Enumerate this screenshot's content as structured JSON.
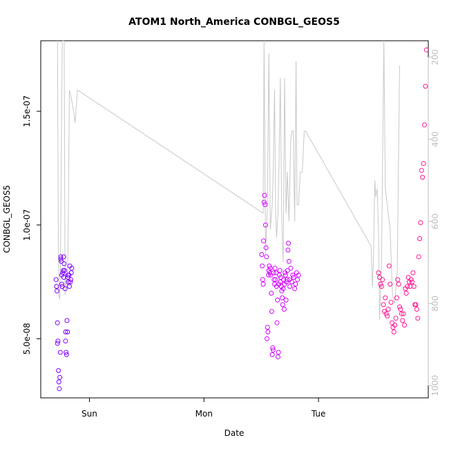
{
  "chart_data": {
    "type": "scatter",
    "title": "ATOM1 North_America CONBGL_GEOS5",
    "xlabel": "Date",
    "ylabel": "CONBGL_GEOS5",
    "x_ticks": [
      "Sun",
      "Mon",
      "Tue"
    ],
    "y_ticks": [
      "5.0e-08",
      "1.0e-07",
      "1.5e-07"
    ],
    "y_tick_values": [
      5e-08,
      1e-07,
      1.5e-07
    ],
    "ylim": [
      2.4e-08,
      1.81e-07
    ],
    "right_axis_ticks": [
      "200",
      "400",
      "600",
      "800",
      "1000"
    ],
    "right_axis_values": [
      200,
      400,
      600,
      800,
      1000
    ],
    "right_axis_reversed": true,
    "right_axis_lim": [
      1030,
      160
    ],
    "x_unit": "hours since Saturday 00:00 (Sun=24, Mon=48, Tue=72)",
    "xlim": [
      13.8,
      95.0
    ],
    "colors": {
      "altitude_line": "#c8c8c8",
      "series_day1": "#7f00ff",
      "series_day2": "#d400ff",
      "series_day3": "#ff1493"
    },
    "series": [
      {
        "type": "line",
        "axis": "right",
        "x": [
          17.2,
          17.3,
          17.5,
          17.6,
          17.8,
          18.0,
          18.3,
          18.7,
          18.9,
          19.0,
          19.3,
          19.5,
          19.8,
          20.2,
          20.5,
          20.8,
          21.0,
          21.5,
          60.4,
          60.6,
          60.9,
          61.3,
          61.6,
          61.9,
          62.3,
          62.5,
          62.8,
          63.0,
          63.2,
          63.5,
          63.7,
          64.0,
          64.3,
          64.6,
          64.9,
          65.2,
          65.5,
          65.8,
          66.2,
          66.4,
          66.7,
          67.0,
          67.3,
          67.5,
          67.8,
          68.2,
          68.6,
          69.0,
          69.3,
          83.0,
          83.3,
          83.5,
          83.8,
          84.0,
          84.3,
          84.6,
          84.8,
          85.2,
          85.7,
          86.0,
          86.4,
          87.0,
          87.5,
          88.0,
          88.5,
          89.0
        ],
        "y": [
          160,
          160,
          680,
          780,
          790,
          620,
          160,
          160,
          780,
          740,
          760,
          680,
          280,
          300,
          320,
          340,
          360,
          280,
          580,
          160,
          680,
          560,
          190,
          620,
          560,
          480,
          280,
          560,
          640,
          580,
          470,
          250,
          600,
          700,
          250,
          580,
          480,
          600,
          400,
          380,
          380,
          600,
          210,
          560,
          560,
          480,
          480,
          380,
          380,
          660,
          760,
          700,
          500,
          540,
          520,
          640,
          840,
          700,
          160,
          520,
          560,
          620,
          780,
          800,
          720,
          220
        ],
        "note": ""
      },
      {
        "type": "scatter",
        "name": "",
        "x": [
          17.0,
          17.1,
          17.2,
          17.3,
          17.3,
          17.4,
          17.5,
          17.6,
          17.7,
          17.8,
          17.9,
          18.0,
          18.0,
          18.1,
          18.2,
          18.2,
          18.3,
          18.4,
          18.5,
          18.6,
          18.6,
          18.7,
          18.8,
          18.9,
          19.0,
          19.0,
          19.1,
          19.2,
          19.3,
          19.4,
          19.5,
          19.5,
          19.6,
          19.7,
          19.8,
          19.9,
          20.0,
          20.1,
          20.2,
          20.3
        ],
        "y": [
          7.6e-08,
          7.3e-08,
          7.1e-08,
          4.8e-08,
          5.7e-08,
          4.9e-08,
          3.6e-08,
          3.1e-08,
          2.8e-08,
          3.3e-08,
          4.4e-08,
          8.5e-08,
          8.6e-08,
          8.4e-08,
          7.8e-08,
          7.4e-08,
          7.3e-08,
          7.9e-08,
          8e-08,
          8.6e-08,
          7.7e-08,
          8.3e-08,
          8e-08,
          7.2e-08,
          4.9e-08,
          5.3e-08,
          4.4e-08,
          4.3e-08,
          5.8e-08,
          5.3e-08,
          7.8e-08,
          7.7e-08,
          7.5e-08,
          7.8e-08,
          7.3e-08,
          8.2e-08,
          7.5e-08,
          7.6e-08,
          7.9e-08,
          8.1e-08
        ],
        "color": "series_day1"
      },
      {
        "type": "scatter",
        "name": "",
        "x": [
          60.1,
          60.2,
          60.3,
          60.4,
          60.5,
          60.6,
          60.7,
          60.8,
          60.9,
          61.0,
          61.1,
          61.2,
          61.3,
          61.4,
          61.5,
          61.6,
          61.7,
          61.8,
          61.9,
          62.0,
          62.1,
          62.2,
          62.3,
          62.4,
          62.5,
          62.6,
          62.7,
          62.8,
          62.9,
          63.0,
          63.1,
          63.2,
          63.3,
          63.4,
          63.5,
          63.6,
          63.7,
          63.8,
          63.9,
          64.0,
          64.1,
          64.2,
          64.3,
          64.4,
          64.5,
          64.6,
          64.7,
          64.8,
          64.9,
          65.0,
          65.1,
          65.2,
          65.3,
          65.4,
          65.5,
          65.6,
          65.7,
          65.8,
          65.9,
          66.0,
          66.2,
          66.4,
          66.6,
          66.8,
          67.0,
          67.2,
          67.4,
          67.6,
          67.8
        ],
        "y": [
          8.7e-08,
          8.2e-08,
          7.6e-08,
          7.4e-08,
          9.3e-08,
          1.1e-07,
          1.13e-07,
          1.09e-07,
          1e-07,
          9e-08,
          8.6e-08,
          5e-08,
          5.5e-08,
          5.3e-08,
          7.8e-08,
          8e-08,
          8.2e-08,
          7.9e-08,
          8.1e-08,
          7.8e-08,
          7e-08,
          6.2e-08,
          4.3e-08,
          4.6e-08,
          4.5e-08,
          7.9e-08,
          7.6e-08,
          7.4e-08,
          8.1e-08,
          7.6e-08,
          7.9e-08,
          7.3e-08,
          5.7e-08,
          6.7e-08,
          4.2e-08,
          4.4e-08,
          7.4e-08,
          7.8e-08,
          8e-08,
          7.5e-08,
          7.7e-08,
          7.3e-08,
          7.1e-08,
          6.8e-08,
          6.5e-08,
          7.2e-08,
          7.6e-08,
          6.3e-08,
          7.4e-08,
          7.9e-08,
          7.8e-08,
          6.7e-08,
          7.5e-08,
          7.6e-08,
          8e-08,
          8.9e-08,
          9.2e-08,
          8.4e-08,
          7.6e-08,
          7.3e-08,
          8.1e-08,
          7.5e-08,
          7.8e-08,
          7.7e-08,
          7.2e-08,
          7.4e-08,
          7.9e-08,
          7.6e-08,
          7.8e-08
        ],
        "color": "series_day2"
      },
      {
        "type": "scatter",
        "name": "",
        "x": [
          84.6,
          84.8,
          85.0,
          85.2,
          85.4,
          85.6,
          85.8,
          86.0,
          86.2,
          86.4,
          86.6,
          86.8,
          87.0,
          87.2,
          87.4,
          87.6,
          87.8,
          88.0,
          88.2,
          88.4,
          88.6,
          88.8,
          89.0,
          89.2,
          89.4,
          89.6,
          89.8,
          90.0,
          90.2,
          90.4,
          90.6,
          90.8,
          91.0,
          91.2,
          91.4,
          91.6,
          91.8,
          92.0,
          92.2,
          92.4,
          92.6,
          92.8,
          93.0,
          93.2,
          93.4,
          93.6,
          93.8,
          94.0,
          94.2,
          94.4,
          94.6
        ],
        "y": [
          7.9e-08,
          7.7e-08,
          7.4e-08,
          7.3e-08,
          7.6e-08,
          6.5e-08,
          6.2e-08,
          6.8e-08,
          6.1e-08,
          6e-08,
          6.3e-08,
          8.2e-08,
          7.4e-08,
          6.6e-08,
          5.7e-08,
          5.5e-08,
          5.3e-08,
          5.6e-08,
          5.9e-08,
          6.8e-08,
          7.6e-08,
          7.4e-08,
          6.4e-08,
          6.3e-08,
          6.1e-08,
          5.8e-08,
          6.1e-08,
          5.6e-08,
          7.2e-08,
          7e-08,
          7.3e-08,
          7.7e-08,
          7.5e-08,
          7.3e-08,
          7.6e-08,
          7.5e-08,
          7.9e-08,
          7.3e-08,
          6.5e-08,
          6.5e-08,
          6.3e-08,
          5.9e-08,
          8.6e-08,
          9.4e-08,
          1.01e-07,
          1.24e-07,
          1.21e-07,
          1.27e-07,
          1.44e-07,
          1.61e-07,
          1.77e-07
        ],
        "color": "series_day3"
      }
    ]
  }
}
